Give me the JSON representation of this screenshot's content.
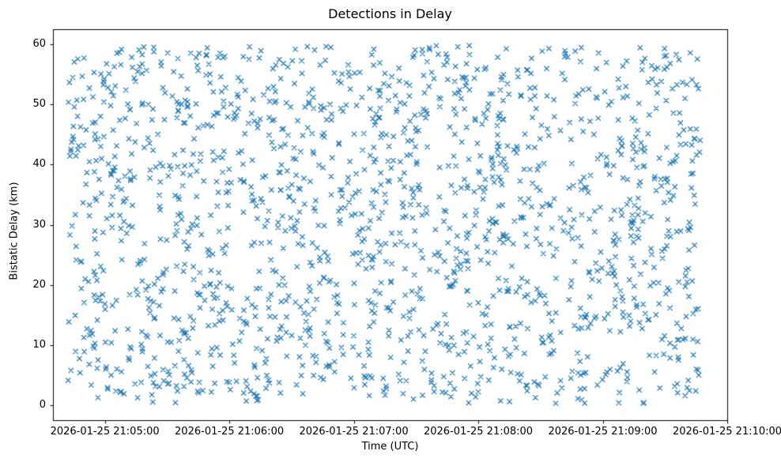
{
  "figure": {
    "title": "Detections in Delay",
    "xlabel": "Time (UTC)",
    "ylabel": "Bistatic Delay (km)"
  },
  "chart_data": {
    "type": "scatter",
    "title": "Detections in Delay",
    "xlabel": "Time (UTC)",
    "ylabel": "Bistatic Delay (km)",
    "marker": "x",
    "marker_color": "#1f77b4",
    "marker_size_px": 6,
    "grid": false,
    "legend": null,
    "x_axis": {
      "tick_labels": [
        "2026-01-25 21:05:00",
        "2026-01-25 21:06:00",
        "2026-01-25 21:07:00",
        "2026-01-25 21:08:00",
        "2026-01-25 21:09:00",
        "2026-01-25 21:10:00"
      ],
      "tick_offsets_s": [
        0,
        60,
        120,
        180,
        240,
        300
      ],
      "range_s": [
        -25,
        300
      ],
      "reference_time": "2026-01-25 21:05:00"
    },
    "y_axis": {
      "ticks": [
        0,
        10,
        20,
        30,
        40,
        50,
        60
      ],
      "tick_labels": [
        "0",
        "10",
        "20",
        "30",
        "40",
        "50",
        "60"
      ],
      "range": [
        -2.5,
        62.5
      ]
    },
    "points": {
      "distribution": "uniform_random",
      "n": 1700,
      "seed": 42,
      "x_range_s": [
        -18,
        287
      ],
      "y_range": [
        0.3,
        59.8
      ]
    }
  }
}
